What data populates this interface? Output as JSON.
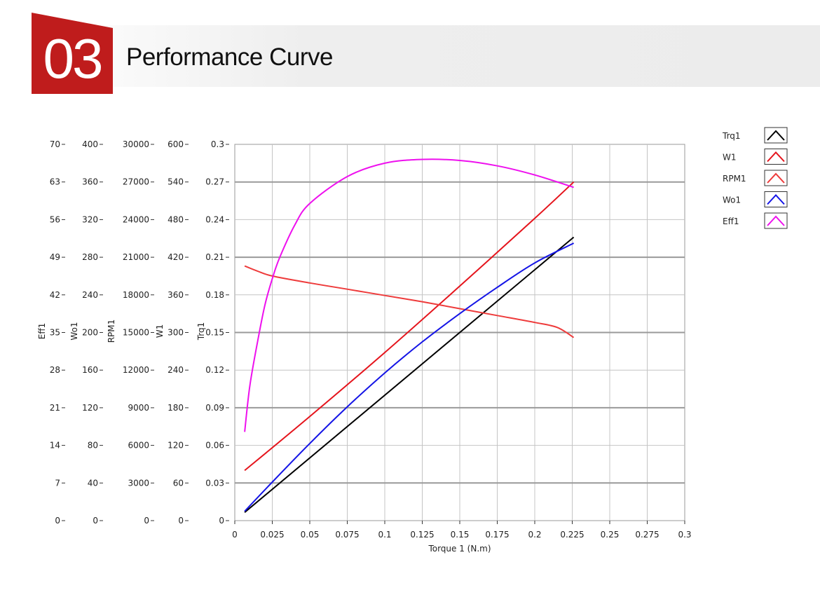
{
  "header": {
    "number": "03",
    "title": "Performance Curve"
  },
  "colors": {
    "accent": "#bf1c1c"
  },
  "chart_data": {
    "type": "line",
    "xlabel": "Torque 1 (N.m)",
    "xlim": [
      0,
      0.3
    ],
    "x_ticks": [
      "0",
      "0.025",
      "0.05",
      "0.075",
      "0.1",
      "0.125",
      "0.15",
      "0.175",
      "0.2",
      "0.225",
      "0.25",
      "0.275",
      "0.3"
    ],
    "grid": true,
    "legend_position": "top-right",
    "axes": [
      {
        "name": "Eff1",
        "ticks": [
          "70",
          "63",
          "56",
          "49",
          "42",
          "35",
          "28",
          "21",
          "14",
          "7",
          "0"
        ],
        "range": [
          0,
          70
        ]
      },
      {
        "name": "Wo1",
        "ticks": [
          "400",
          "360",
          "320",
          "280",
          "240",
          "200",
          "160",
          "120",
          "80",
          "40",
          "0"
        ],
        "range": [
          0,
          400
        ]
      },
      {
        "name": "RPM1",
        "ticks": [
          "30000",
          "27000",
          "24000",
          "21000",
          "18000",
          "15000",
          "12000",
          "9000",
          "6000",
          "3000",
          "0"
        ],
        "range": [
          0,
          30000
        ]
      },
      {
        "name": "W1",
        "ticks": [
          "600",
          "540",
          "480",
          "420",
          "360",
          "300",
          "240",
          "180",
          "120",
          "60",
          "0"
        ],
        "range": [
          0,
          600
        ]
      },
      {
        "name": "Trq1",
        "ticks": [
          "0.3",
          "0.27",
          "0.24",
          "0.21",
          "0.18",
          "0.15",
          "0.12",
          "0.09",
          "0.06",
          "0.03",
          "0"
        ],
        "range": [
          0,
          0.3
        ]
      }
    ],
    "series": [
      {
        "name": "Trq1",
        "color": "#000000",
        "axis": "Trq1",
        "x": [
          0.0066,
          0.226
        ],
        "y": [
          0.0066,
          0.226
        ]
      },
      {
        "name": "W1",
        "color": "#e5141c",
        "axis": "W1",
        "x": [
          0.0066,
          0.05,
          0.1,
          0.15,
          0.2,
          0.226
        ],
        "y": [
          80,
          166,
          268,
          374,
          482,
          540
        ]
      },
      {
        "name": "RPM1",
        "color": "#ee3b3b",
        "axis": "RPM1",
        "x": [
          0.0066,
          0.015,
          0.025,
          0.05,
          0.075,
          0.1,
          0.125,
          0.15,
          0.175,
          0.2,
          0.215,
          0.226
        ],
        "y": [
          20300,
          19900,
          19500,
          18950,
          18450,
          17950,
          17450,
          16900,
          16350,
          15800,
          15400,
          14600
        ]
      },
      {
        "name": "Wo1",
        "color": "#1414e6",
        "axis": "Wo1",
        "x": [
          0.0066,
          0.025,
          0.05,
          0.075,
          0.1,
          0.125,
          0.15,
          0.175,
          0.2,
          0.226
        ],
        "y": [
          10,
          41,
          82,
          121,
          157,
          190,
          220,
          248,
          274,
          295
        ]
      },
      {
        "name": "Eff1",
        "color": "#ee10ee",
        "axis": "Eff1",
        "x": [
          0.0066,
          0.01,
          0.015,
          0.02,
          0.025,
          0.03,
          0.04,
          0.05,
          0.075,
          0.1,
          0.125,
          0.15,
          0.175,
          0.2,
          0.226
        ],
        "y": [
          16.5,
          25,
          33,
          40,
          45,
          49,
          55,
          59,
          64,
          66.5,
          67.2,
          67,
          66,
          64.3,
          62
        ]
      }
    ]
  }
}
